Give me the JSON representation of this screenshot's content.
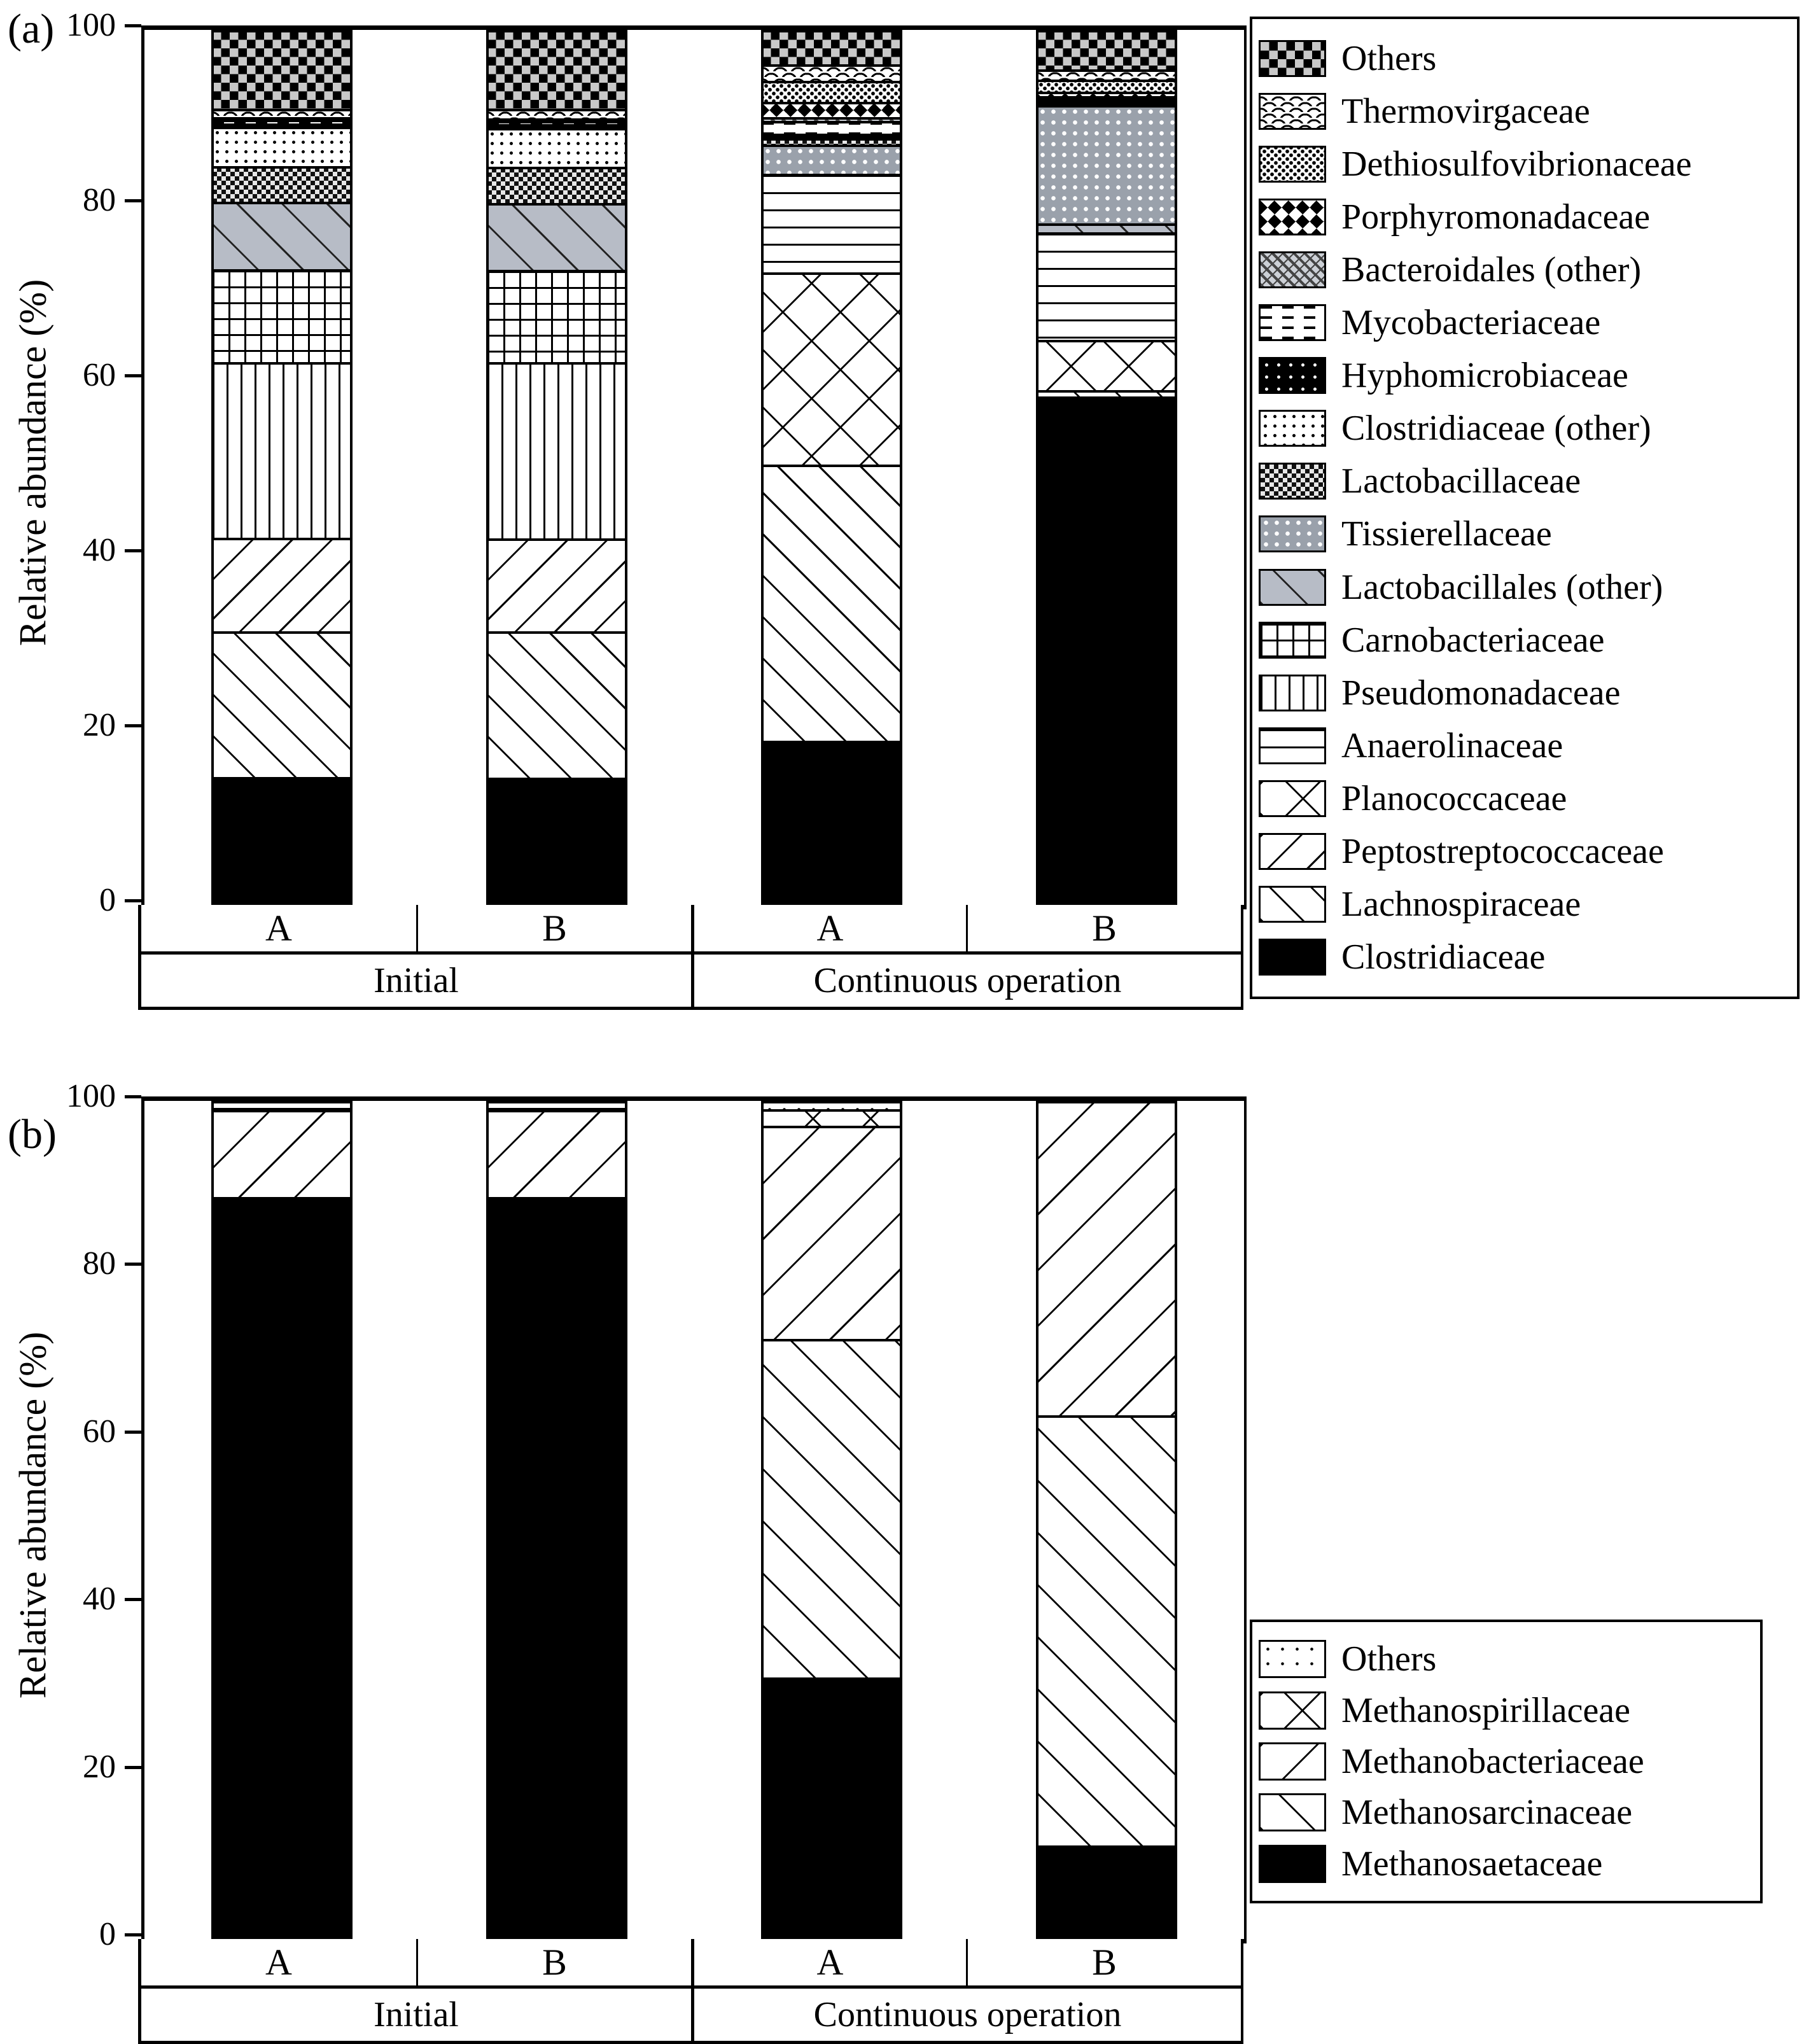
{
  "panel_a": {
    "label": "(a)",
    "y_axis": {
      "title": "Relative abundance (%)",
      "ticks": [
        0,
        20,
        40,
        60,
        80,
        100
      ]
    },
    "x_groups": {
      "replicates": [
        "A",
        "B",
        "A",
        "B"
      ],
      "conditions": [
        "Initial",
        "Continuous operation"
      ]
    },
    "chart_data": {
      "type": "bar",
      "stacked": true,
      "categories": [
        "Initial A",
        "Initial B",
        "Continuous operation A",
        "Continuous operation B"
      ],
      "ylabel": "Relative abundance (%)",
      "ylim": [
        0,
        100
      ],
      "yticks": [
        0,
        20,
        40,
        60,
        80,
        100
      ],
      "grid": false,
      "legend_position": "right",
      "series": [
        {
          "name": "Clostridiaceae",
          "pattern": "solid-black",
          "values": [
            14.4,
            14.3,
            18.5,
            58.0
          ]
        },
        {
          "name": "Lachnospiraceae",
          "pattern": "hatch-fwd",
          "values": [
            16.7,
            16.8,
            31.7,
            0.7
          ]
        },
        {
          "name": "Peptostreptococcaceae",
          "pattern": "hatch-back",
          "values": [
            10.7,
            10.6,
            0,
            0
          ]
        },
        {
          "name": "Planococcaceae",
          "pattern": "hatch-cross",
          "values": [
            0,
            0,
            22.0,
            5.8
          ]
        },
        {
          "name": "Anaerolinaceae",
          "pattern": "lines-horiz",
          "values": [
            0,
            0,
            11.3,
            12.3
          ]
        },
        {
          "name": "Pseudomonadaceae",
          "pattern": "lines-vert",
          "values": [
            20.1,
            20.2,
            0,
            0
          ]
        },
        {
          "name": "Carnobacteriaceae",
          "pattern": "lines-grid",
          "values": [
            10.7,
            10.6,
            0,
            0
          ]
        },
        {
          "name": "Lactobacillales (other)",
          "pattern": "gray-diag",
          "values": [
            7.7,
            7.7,
            0,
            1.0
          ]
        },
        {
          "name": "Tissierellaceae",
          "pattern": "gray-dots",
          "values": [
            0,
            0,
            3.4,
            13.6
          ]
        },
        {
          "name": "Lactobacillaceae",
          "pattern": "dark-checker",
          "values": [
            4.1,
            4.1,
            0.7,
            0.2
          ]
        },
        {
          "name": "Clostridiaceae (other)",
          "pattern": "light-dots",
          "values": [
            4.5,
            4.5,
            0,
            0
          ]
        },
        {
          "name": "Hyphomicrobiaceae",
          "pattern": "black-dots",
          "values": [
            0.4,
            0.4,
            0.5,
            0.2
          ]
        },
        {
          "name": "Mycobacteriaceae",
          "pattern": "dash-rows",
          "values": [
            0.4,
            0.4,
            1.5,
            0.3
          ]
        },
        {
          "name": "Bacteroidales (other)",
          "pattern": "herringbone",
          "values": [
            0.1,
            0.1,
            0.4,
            0.3
          ]
        },
        {
          "name": "Porphyromonadaceae",
          "pattern": "diamond-checker",
          "values": [
            0.1,
            0.1,
            1.8,
            0.5
          ]
        },
        {
          "name": "Dethiosulfovibrionaceae",
          "pattern": "dense-dots",
          "values": [
            0.1,
            0.1,
            2.4,
            1.4
          ]
        },
        {
          "name": "Thermovirgaceae",
          "pattern": "scales",
          "values": [
            1.0,
            1.1,
            1.9,
            1.2
          ]
        },
        {
          "name": "Others",
          "pattern": "weave-checker",
          "values": [
            9.0,
            9.0,
            3.9,
            4.5
          ]
        }
      ]
    }
  },
  "panel_b": {
    "label": "(b)",
    "y_axis": {
      "title": "Relative abundance (%)",
      "ticks": [
        0,
        20,
        40,
        60,
        80,
        100
      ]
    },
    "x_groups": {
      "replicates": [
        "A",
        "B",
        "A",
        "B"
      ],
      "conditions": [
        "Initial",
        "Continuous operation"
      ]
    },
    "chart_data": {
      "type": "bar",
      "stacked": true,
      "categories": [
        "Initial A",
        "Initial B",
        "Continuous operation A",
        "Continuous operation B"
      ],
      "ylabel": "Relative abundance (%)",
      "ylim": [
        0,
        100
      ],
      "yticks": [
        0,
        20,
        40,
        60,
        80,
        100
      ],
      "grid": false,
      "legend_position": "right-bottom",
      "series": [
        {
          "name": "Methanosaetaceae",
          "pattern": "solid-black",
          "values": [
            88.2,
            88.2,
            31.0,
            10.9
          ]
        },
        {
          "name": "Methanosarcinaceae",
          "pattern": "hatch-fwd-b",
          "values": [
            0.3,
            0.3,
            40.5,
            51.5
          ]
        },
        {
          "name": "Methanobacteriaceae",
          "pattern": "hatch-back-b",
          "values": [
            10.4,
            10.4,
            25.5,
            37.6
          ]
        },
        {
          "name": "Methanospirillaceae",
          "pattern": "hatch-cross",
          "values": [
            0.3,
            0.3,
            2.0,
            0
          ]
        },
        {
          "name": "Others",
          "pattern": "sparse-dots",
          "values": [
            0.8,
            0.8,
            1.0,
            0
          ]
        }
      ]
    }
  }
}
